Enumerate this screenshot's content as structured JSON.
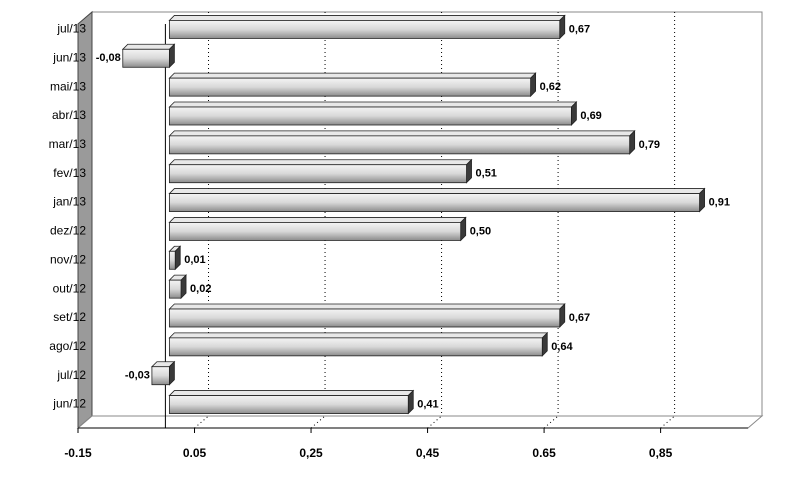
{
  "chart_data": {
    "type": "bar",
    "orientation": "horizontal",
    "categories": [
      "jul/13",
      "jun/13",
      "mai/13",
      "abr/13",
      "mar/13",
      "fev/13",
      "jan/13",
      "dez/12",
      "nov/12",
      "out/12",
      "set/12",
      "ago/12",
      "jul/12",
      "jun/12"
    ],
    "values": [
      0.67,
      -0.08,
      0.62,
      0.69,
      0.79,
      0.51,
      0.91,
      0.5,
      0.01,
      0.02,
      0.67,
      0.64,
      -0.03,
      0.41
    ],
    "value_labels": [
      "0,67",
      "-0,08",
      "0,62",
      "0,69",
      "0,79",
      "0,51",
      "0,91",
      "0,50",
      "0,01",
      "0,02",
      "0,67",
      "0,64",
      "-0,03",
      "0,41"
    ],
    "color": "#b0b0b0",
    "xlim": [
      -0.15,
      1.0
    ],
    "xticks": [
      -0.15,
      0.05,
      {
        "value": 0.25,
        "label": "0,25"
      },
      {
        "value": 0.45,
        "label": "0,45"
      },
      0.65,
      {
        "value": 0.85,
        "label": "0,85"
      }
    ],
    "grid": true
  }
}
